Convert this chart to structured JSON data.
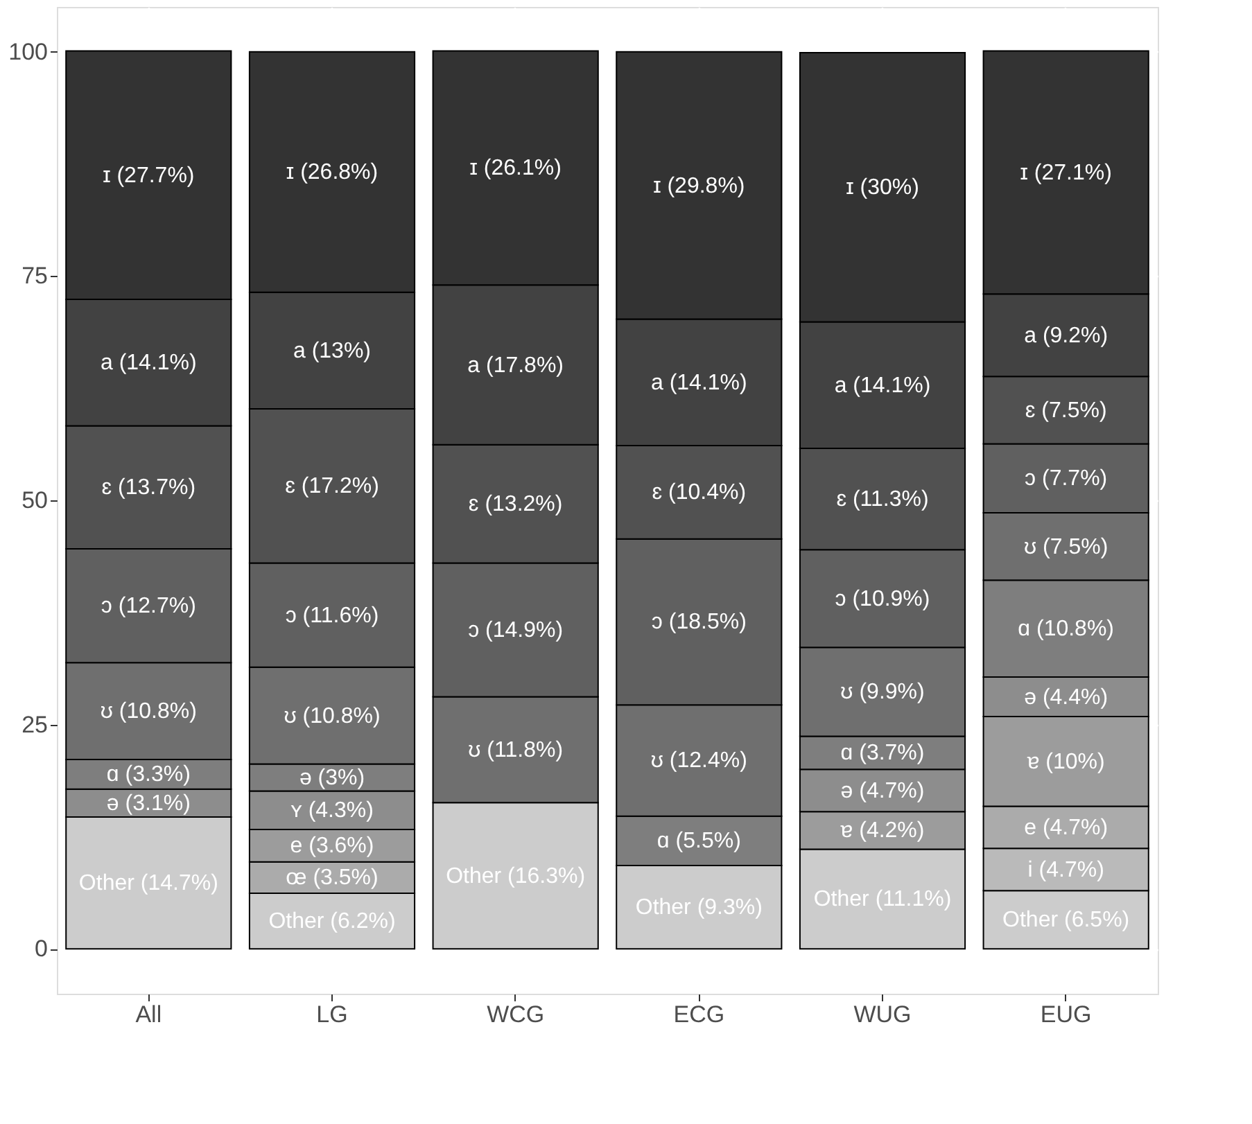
{
  "chart_data": {
    "type": "bar",
    "stacked": true,
    "categories": [
      "All",
      "LG",
      "WCG",
      "ECG",
      "WUG",
      "EUG"
    ],
    "ylim": [
      -5,
      105
    ],
    "yticks": [
      0,
      25,
      50,
      75,
      100
    ],
    "grid": true,
    "series": [
      {
        "color": "#cccccc",
        "values": [
          14.7,
          6.2,
          16.3,
          9.3,
          11.1,
          6.5
        ],
        "value_labels": [
          "Other (14.7%)",
          "Other (6.2%)",
          "Other (16.3%)",
          "Other (9.3%)",
          "Other (11.1%)",
          "Other (6.5%)"
        ]
      },
      {
        "colors": [
          null,
          null,
          null,
          null,
          null,
          "#bababa"
        ],
        "values": [
          null,
          null,
          null,
          null,
          null,
          4.7
        ],
        "value_labels": [
          null,
          null,
          null,
          null,
          null,
          "i (4.7%)"
        ]
      },
      {
        "colors": [
          null,
          "#ababab",
          null,
          null,
          null,
          null
        ],
        "values": [
          null,
          3.5,
          null,
          null,
          null,
          null
        ],
        "value_labels": [
          null,
          "œ (3.5%)",
          null,
          null,
          null,
          null
        ]
      },
      {
        "colors": [
          null,
          "#9c9c9c",
          null,
          null,
          null,
          "#ababab"
        ],
        "values": [
          null,
          3.6,
          null,
          null,
          null,
          4.7
        ],
        "value_labels": [
          null,
          "e (3.6%)",
          null,
          null,
          null,
          "e (4.7%)"
        ]
      },
      {
        "colors": [
          null,
          null,
          null,
          null,
          "#9c9c9c",
          "#9c9c9c"
        ],
        "values": [
          null,
          null,
          null,
          null,
          4.2,
          10
        ],
        "value_labels": [
          null,
          null,
          null,
          null,
          "ɐ (4.2%)",
          "ɐ (10%)"
        ]
      },
      {
        "colors": [
          null,
          "#8d8d8d",
          null,
          null,
          null,
          null
        ],
        "values": [
          null,
          4.3,
          null,
          null,
          null,
          null
        ],
        "value_labels": [
          null,
          "ʏ (4.3%)",
          null,
          null,
          null,
          null
        ]
      },
      {
        "colors": [
          "#8d8d8d",
          "#7e7e7e",
          null,
          null,
          "#8d8d8d",
          "#8d8d8d"
        ],
        "values": [
          3.1,
          3.0,
          null,
          null,
          4.7,
          4.4
        ],
        "value_labels": [
          "ə (3.1%)",
          "ə (3%)",
          null,
          null,
          "ə (4.7%)",
          "ə (4.4%)"
        ]
      },
      {
        "colors": [
          "#7e7e7e",
          null,
          null,
          "#7e7e7e",
          "#7e7e7e",
          "#7e7e7e"
        ],
        "values": [
          3.3,
          null,
          null,
          5.5,
          3.7,
          10.8
        ],
        "value_labels": [
          "ɑ (3.3%)",
          null,
          null,
          "ɑ (5.5%)",
          "ɑ (3.7%)",
          "ɑ (10.8%)"
        ]
      },
      {
        "color": "#6f6f6f",
        "values": [
          10.8,
          10.8,
          11.8,
          12.4,
          9.9,
          7.5
        ],
        "value_labels": [
          "ʊ (10.8%)",
          "ʊ (10.8%)",
          "ʊ (11.8%)",
          "ʊ (12.4%)",
          "ʊ (9.9%)",
          "ʊ (7.5%)"
        ]
      },
      {
        "color": "#606060",
        "values": [
          12.7,
          11.6,
          14.9,
          18.5,
          10.9,
          7.7
        ],
        "value_labels": [
          "ɔ (12.7%)",
          "ɔ (11.6%)",
          "ɔ (14.9%)",
          "ɔ (18.5%)",
          "ɔ (10.9%)",
          "ɔ (7.7%)"
        ]
      },
      {
        "color": "#515151",
        "values": [
          13.7,
          17.2,
          13.2,
          10.4,
          11.3,
          7.5
        ],
        "value_labels": [
          "ɛ (13.7%)",
          "ɛ (17.2%)",
          "ɛ (13.2%)",
          "ɛ (10.4%)",
          "ɛ (11.3%)",
          "ɛ (7.5%)"
        ]
      },
      {
        "color": "#424242",
        "values": [
          14.1,
          13,
          17.8,
          14.1,
          14.1,
          9.2
        ],
        "value_labels": [
          "a (14.1%)",
          "a (13%)",
          "a (17.8%)",
          "a (14.1%)",
          "a (14.1%)",
          "a (9.2%)"
        ]
      },
      {
        "color": "#333333",
        "values": [
          27.7,
          26.8,
          26.1,
          29.8,
          30,
          27.1
        ],
        "value_labels": [
          "ɪ (27.7%)",
          "ɪ (26.8%)",
          "ɪ (26.1%)",
          "ɪ (29.8%)",
          "ɪ (30%)",
          "ɪ (27.1%)"
        ]
      }
    ]
  }
}
